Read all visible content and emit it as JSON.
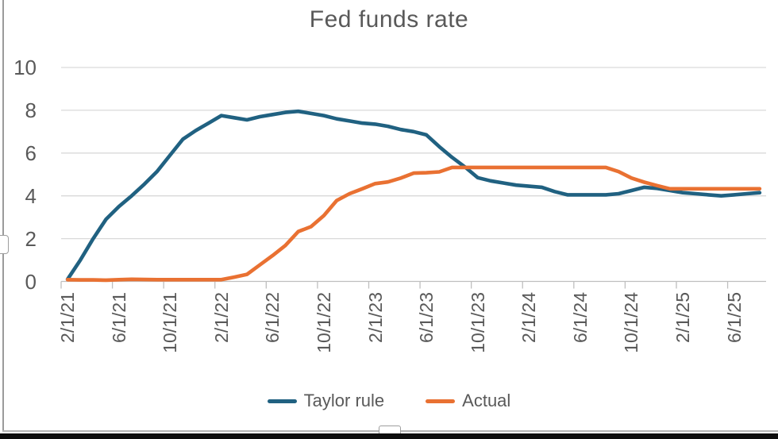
{
  "chart_data": {
    "type": "line",
    "title": "Fed funds rate",
    "grid": true,
    "legend_position": "bottom",
    "ylim": [
      0,
      10
    ],
    "yticks": [
      0,
      2,
      4,
      6,
      8,
      10
    ],
    "x_label_every": 4,
    "x": [
      "2/1/21",
      "3/1/21",
      "4/1/21",
      "5/1/21",
      "6/1/21",
      "7/1/21",
      "8/1/21",
      "9/1/21",
      "10/1/21",
      "11/1/21",
      "12/1/21",
      "1/1/22",
      "2/1/22",
      "3/1/22",
      "4/1/22",
      "5/1/22",
      "6/1/22",
      "7/1/22",
      "8/1/22",
      "9/1/22",
      "10/1/22",
      "11/1/22",
      "12/1/22",
      "1/1/23",
      "2/1/23",
      "3/1/23",
      "4/1/23",
      "5/1/23",
      "6/1/23",
      "7/1/23",
      "8/1/23",
      "9/1/23",
      "10/1/23",
      "11/1/23",
      "12/1/23",
      "1/1/24",
      "2/1/24",
      "3/1/24",
      "4/1/24",
      "5/1/24",
      "6/1/24",
      "7/1/24",
      "8/1/24",
      "9/1/24",
      "10/1/24",
      "11/1/24",
      "12/1/24",
      "1/1/25",
      "2/1/25",
      "3/1/25",
      "4/1/25",
      "5/1/25",
      "6/1/25",
      "7/1/25",
      "8/1/25"
    ],
    "series": [
      {
        "name": "Taylor rule",
        "color": "#206181",
        "values": [
          0.1,
          1.0,
          2.0,
          2.9,
          3.5,
          4.0,
          4.55,
          5.15,
          5.9,
          6.65,
          7.05,
          7.4,
          7.75,
          7.65,
          7.55,
          7.7,
          7.8,
          7.9,
          7.95,
          7.85,
          7.75,
          7.6,
          7.5,
          7.4,
          7.35,
          7.25,
          7.1,
          7.0,
          6.85,
          6.3,
          5.8,
          5.35,
          4.85,
          4.7,
          4.6,
          4.5,
          4.45,
          4.4,
          4.2,
          4.05,
          4.05,
          4.05,
          4.05,
          4.1,
          4.25,
          4.4,
          4.35,
          4.25,
          4.15,
          4.1,
          4.05,
          4.0,
          4.05,
          4.1,
          4.15
        ]
      },
      {
        "name": "Actual",
        "color": "#e97132",
        "values": [
          0.08,
          0.07,
          0.07,
          0.06,
          0.08,
          0.1,
          0.09,
          0.08,
          0.08,
          0.08,
          0.08,
          0.08,
          0.08,
          0.2,
          0.33,
          0.77,
          1.21,
          1.68,
          2.33,
          2.56,
          3.08,
          3.78,
          4.1,
          4.33,
          4.57,
          4.65,
          4.83,
          5.06,
          5.08,
          5.12,
          5.33,
          5.33,
          5.33,
          5.33,
          5.33,
          5.33,
          5.33,
          5.33,
          5.33,
          5.33,
          5.33,
          5.33,
          5.33,
          5.13,
          4.83,
          4.64,
          4.48,
          4.33,
          4.33,
          4.33,
          4.33,
          4.33,
          4.33,
          4.33,
          4.33
        ]
      }
    ],
    "axis_colors": {
      "gridline": "#d9d9d9",
      "axis_line": "#bfbfbf",
      "tick_text": "#595959",
      "title_text": "#595959"
    }
  }
}
